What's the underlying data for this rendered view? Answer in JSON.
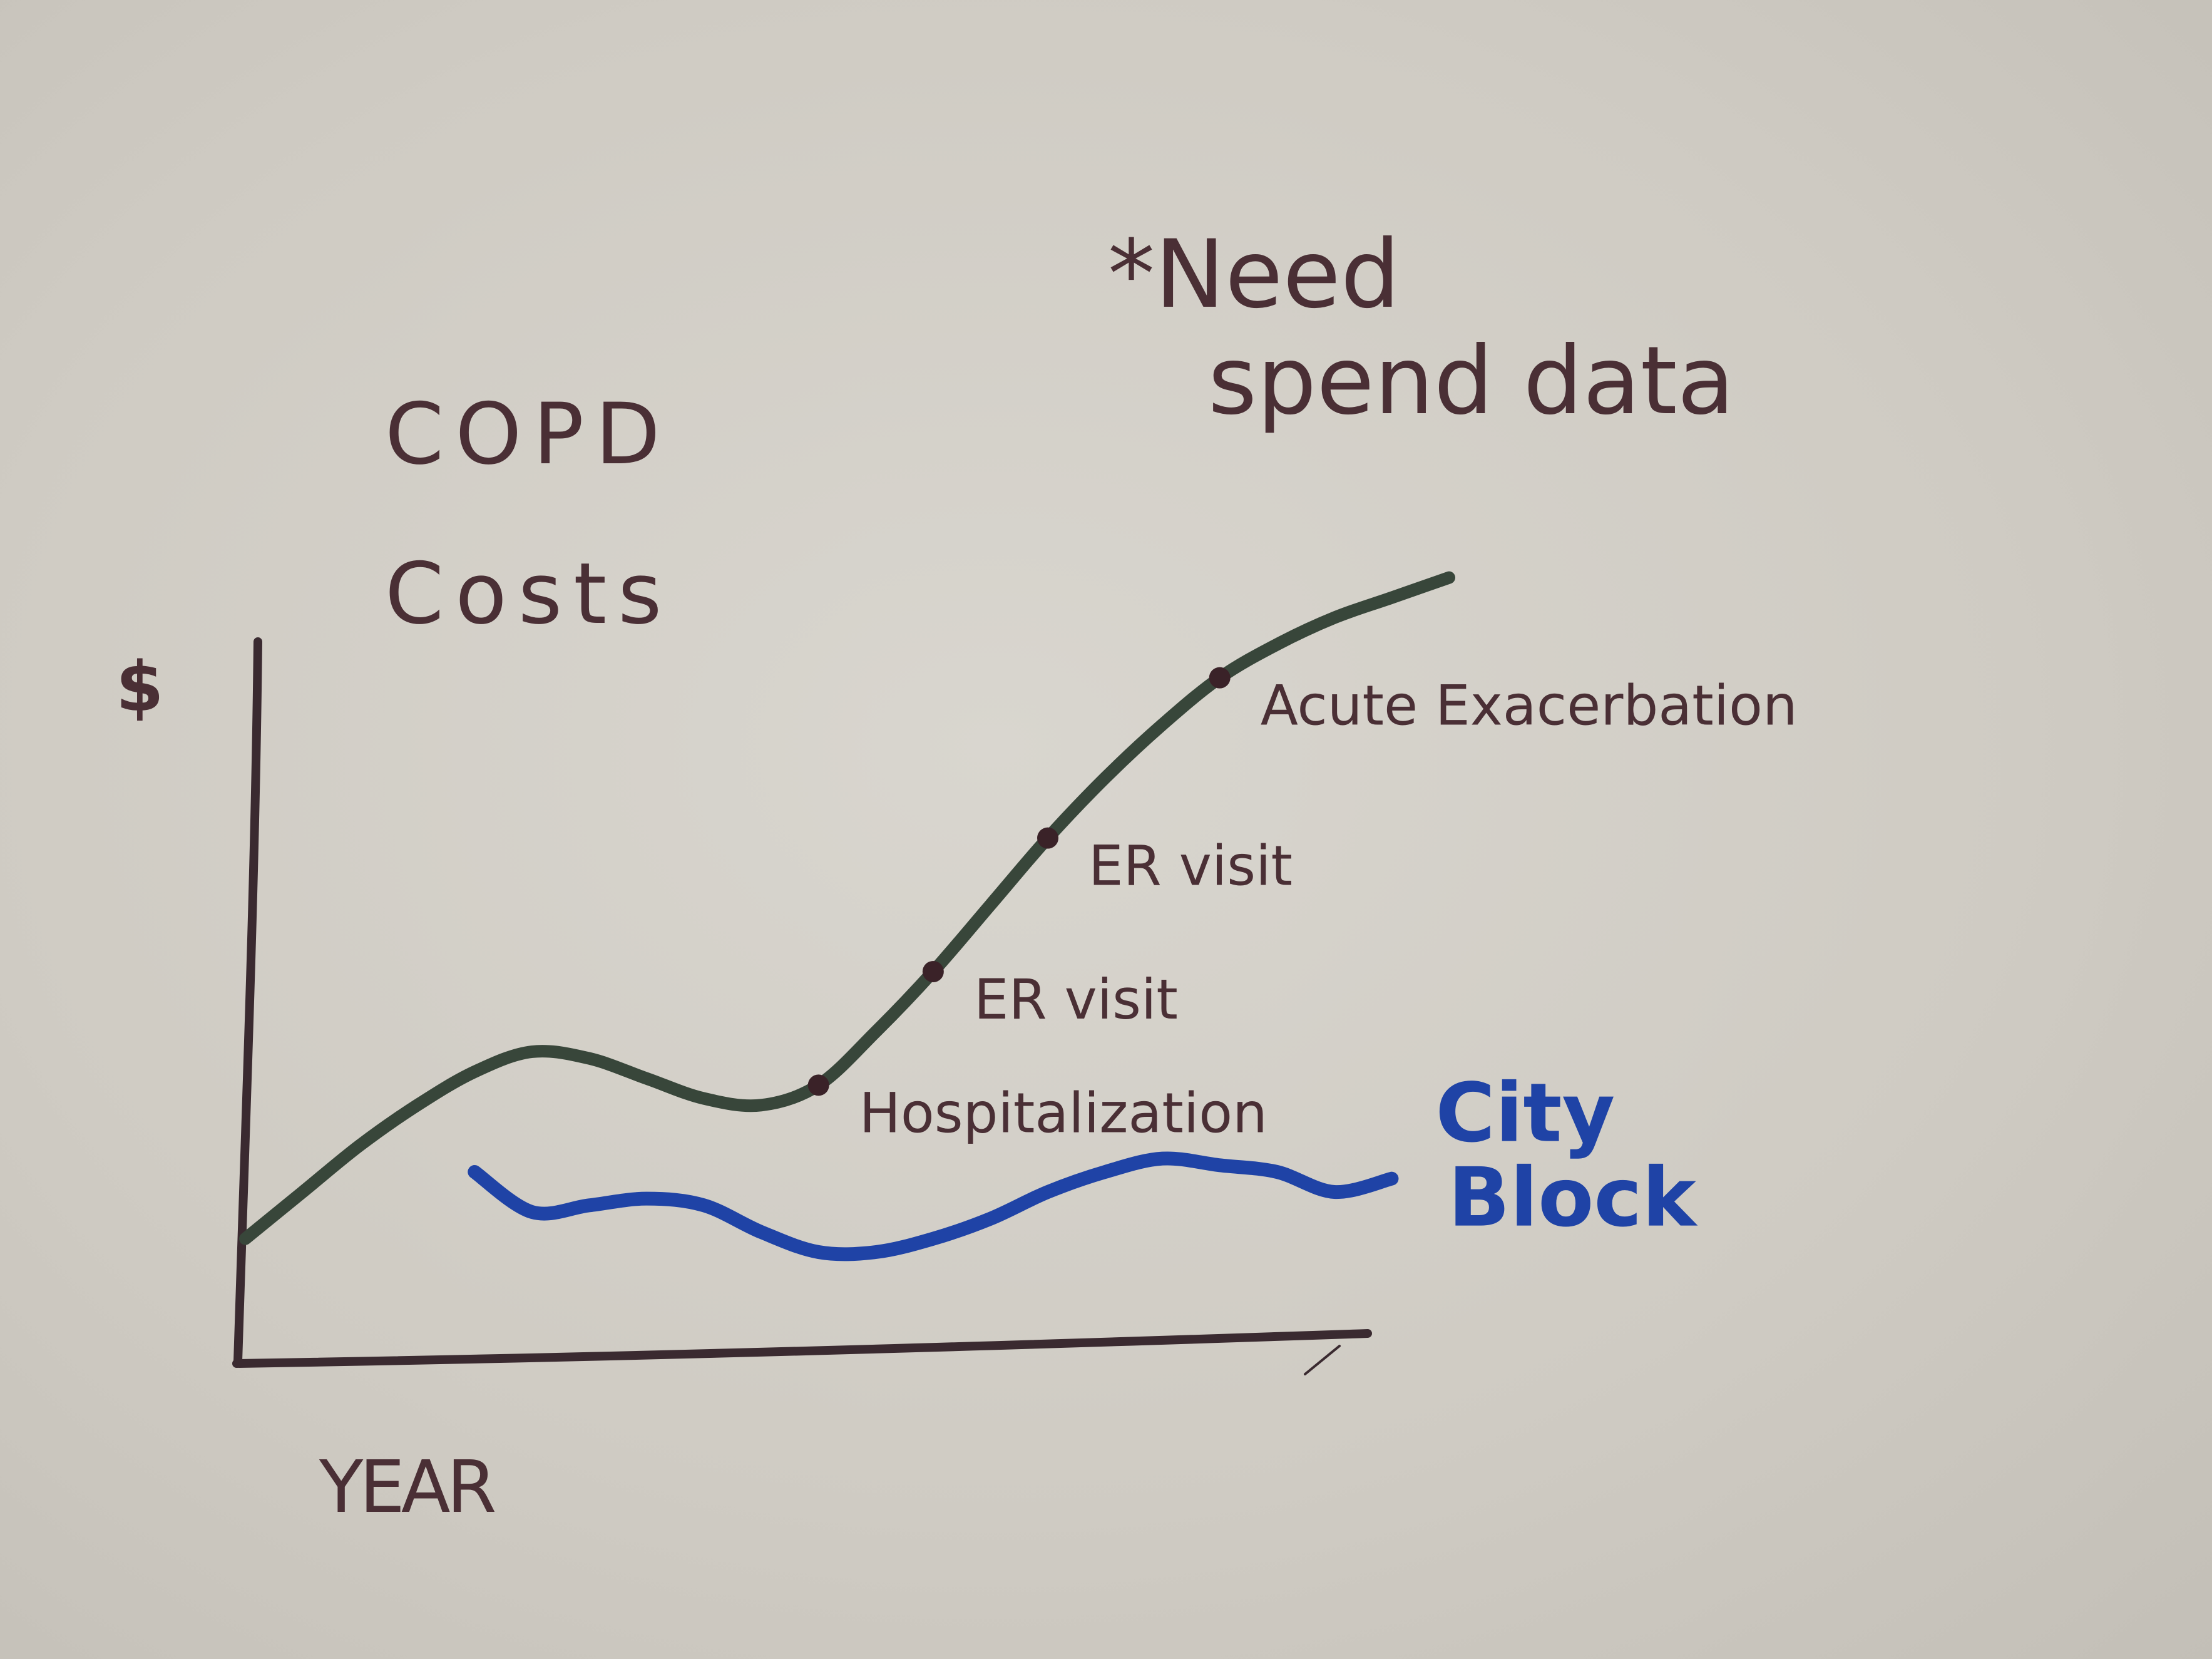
{
  "chart_data": {
    "type": "line",
    "title": "COPD Costs",
    "xlabel": "YEAR",
    "ylabel": "$",
    "note": "*Need spend data",
    "grid": false,
    "series": [
      {
        "name": "",
        "color": "#38463a",
        "x": [
          0,
          1,
          2,
          3,
          4,
          5,
          6,
          7,
          8,
          9,
          10,
          11,
          12,
          13,
          14,
          15,
          16,
          17,
          18,
          19,
          20,
          21
        ],
        "y": [
          17,
          24,
          31,
          37,
          42,
          45,
          44,
          41,
          38,
          37,
          40,
          48,
          57,
          67,
          77,
          86,
          94,
          101,
          106,
          110,
          113,
          116
        ]
      },
      {
        "name": "City Block",
        "color": "#1f43a6",
        "x": [
          4,
          5,
          6,
          7,
          8,
          9,
          10,
          11,
          12,
          13,
          14,
          15,
          16,
          17,
          18,
          19,
          20
        ],
        "y": [
          27,
          21,
          22,
          23,
          22,
          18,
          15,
          15,
          17,
          20,
          24,
          27,
          29,
          28,
          27,
          24,
          26
        ]
      }
    ],
    "annotations": [
      {
        "text": "Hospitalization",
        "x": 10,
        "y": 40
      },
      {
        "text": "ER visit",
        "x": 12,
        "y": 57
      },
      {
        "text": "ER visit",
        "x": 14,
        "y": 77
      },
      {
        "text": "Acute Exacerbation",
        "x": 17,
        "y": 101
      }
    ],
    "xlim": [
      0,
      21
    ],
    "ylim": [
      0,
      120
    ]
  }
}
